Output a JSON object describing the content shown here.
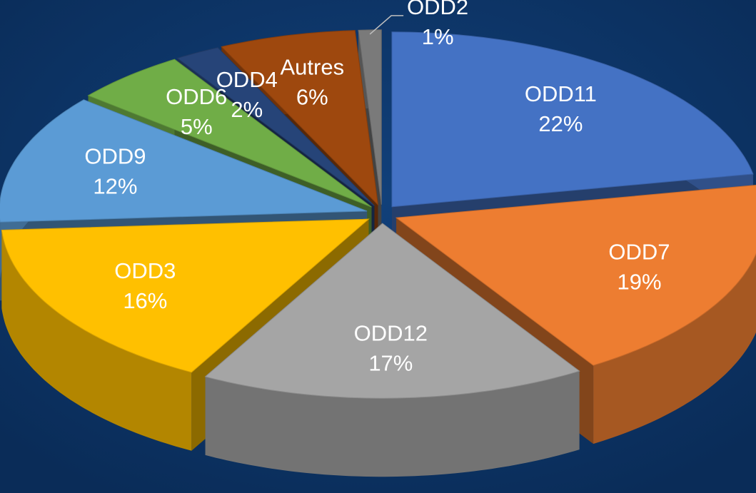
{
  "chart_data": {
    "type": "pie",
    "categories": [
      "ODD11",
      "ODD7",
      "ODD12",
      "ODD3",
      "ODD9",
      "ODD6",
      "ODD4",
      "Autres",
      "ODD2"
    ],
    "values": [
      22,
      19,
      17,
      16,
      12,
      5,
      2,
      6,
      1
    ],
    "value_labels": [
      "22%",
      "19%",
      "17%",
      "16%",
      "12%",
      "5%",
      "2%",
      "6%",
      "1%"
    ],
    "colors": [
      "#4472c4",
      "#ed7d31",
      "#a5a5a5",
      "#ffc000",
      "#5b9bd5",
      "#70ad47",
      "#264478",
      "#9e480e",
      "#7a7a7a"
    ]
  }
}
